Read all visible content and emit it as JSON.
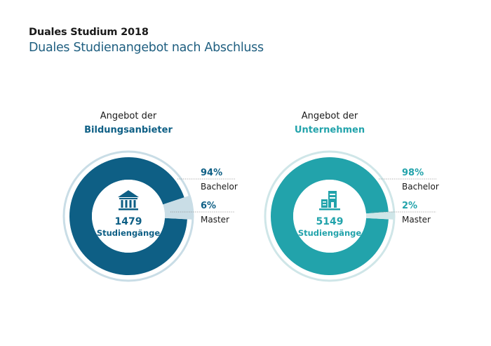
{
  "header": {
    "title": "Duales Studium 2018",
    "subtitle": "Duales Studienangebot nach Abschluss"
  },
  "chart_data": [
    {
      "type": "pie",
      "variant": "donut",
      "heading_line1": "Angebot der",
      "heading_line2": "Bildungsanbieter",
      "icon": "institution-building-icon",
      "center_value": "1479",
      "center_label": "Studiengänge",
      "color": "#0e5f85",
      "color_secondary": "#c9dde6",
      "slices": [
        {
          "label": "Bachelor",
          "value": 94,
          "display": "94%"
        },
        {
          "label": "Master",
          "value": 6,
          "display": "6%"
        }
      ]
    },
    {
      "type": "pie",
      "variant": "donut",
      "heading_line1": "Angebot der",
      "heading_line2": "Unternehmen",
      "icon": "office-buildings-icon",
      "center_value": "5149",
      "center_label": "Studiengänge",
      "color": "#22a3ab",
      "color_secondary": "#cfe6e8",
      "slices": [
        {
          "label": "Bachelor",
          "value": 98,
          "display": "98%"
        },
        {
          "label": "Master",
          "value": 2,
          "display": "2%"
        }
      ]
    }
  ]
}
